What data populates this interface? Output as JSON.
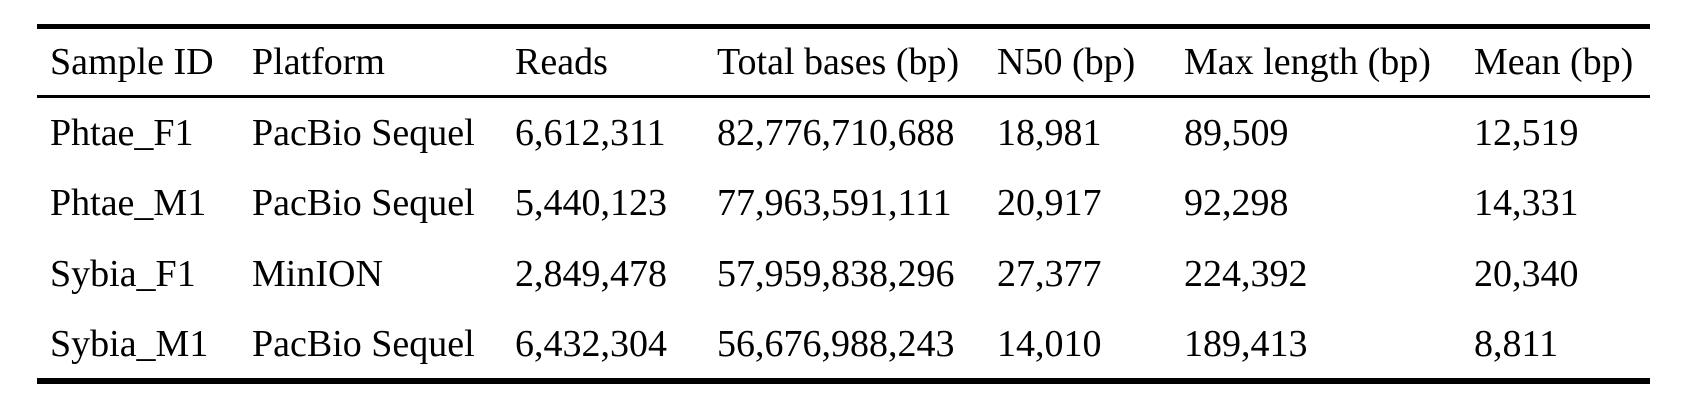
{
  "table": {
    "columns": [
      "Sample ID",
      "Platform",
      "Reads",
      "Total bases (bp)",
      "N50 (bp)",
      "Max length (bp)",
      "Mean (bp)"
    ],
    "rows": [
      [
        "Phtae_F1",
        "PacBio Sequel",
        "6,612,311",
        "82,776,710,688",
        "18,981",
        "89,509",
        "12,519"
      ],
      [
        "Phtae_M1",
        "PacBio Sequel",
        "5,440,123",
        "77,963,591,111",
        "20,917",
        "92,298",
        "14,331"
      ],
      [
        "Sybia_F1",
        "MinION",
        "2,849,478",
        "57,959,838,296",
        "27,377",
        "224,392",
        "20,340"
      ],
      [
        "Sybia_M1",
        "PacBio Sequel",
        "6,432,304",
        "56,676,988,243",
        "14,010",
        "189,413",
        "8,811"
      ]
    ],
    "colors": {
      "text": "#000000",
      "background": "#ffffff",
      "rule": "#000000"
    }
  }
}
